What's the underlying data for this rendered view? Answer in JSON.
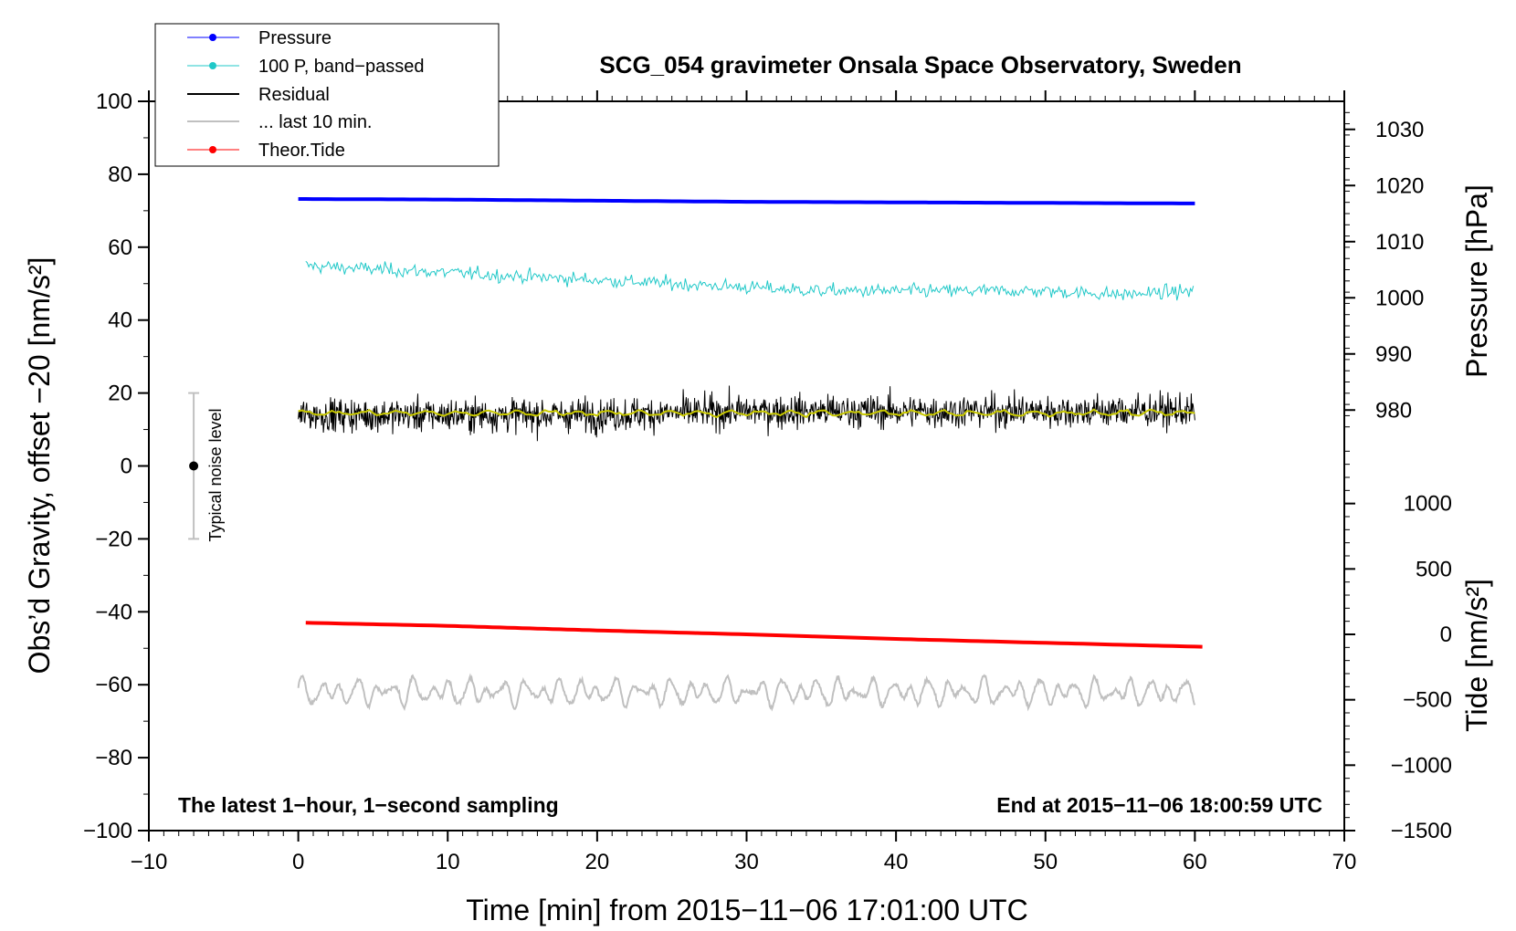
{
  "chart_data": {
    "type": "line",
    "title": "SCG_054 gravimeter Onsala Space Observatory, Sweden",
    "xlabel": "Time [min] from 2015−11−06 17:01:00 UTC",
    "ylabel_left": "Obs’d Gravity, offset −20 [nm/s²]",
    "ylabel_right_pressure": "Pressure [hPa]",
    "ylabel_right_tide": "Tide [nm/s²]",
    "xlim": [
      -10,
      70
    ],
    "ylim_left": [
      -100,
      100
    ],
    "ylim_pressure": [
      975,
      1035
    ],
    "ylim_tide": [
      -1500,
      1500
    ],
    "grid": false,
    "legend_position": "top-left",
    "x_ticks": [
      {
        "value": -10,
        "label": "−10"
      },
      {
        "value": 0,
        "label": "0"
      },
      {
        "value": 10,
        "label": "10"
      },
      {
        "value": 20,
        "label": "20"
      },
      {
        "value": 30,
        "label": "30"
      },
      {
        "value": 40,
        "label": "40"
      },
      {
        "value": 50,
        "label": "50"
      },
      {
        "value": 60,
        "label": "60"
      },
      {
        "value": 70,
        "label": "70"
      }
    ],
    "y_left_ticks": [
      {
        "value": 100,
        "label": "100"
      },
      {
        "value": 80,
        "label": "80"
      },
      {
        "value": 60,
        "label": "60"
      },
      {
        "value": 40,
        "label": "40"
      },
      {
        "value": 20,
        "label": "20"
      },
      {
        "value": 0,
        "label": "0"
      },
      {
        "value": -20,
        "label": "−20"
      },
      {
        "value": -40,
        "label": "−40"
      },
      {
        "value": -60,
        "label": "−60"
      },
      {
        "value": -80,
        "label": "−80"
      },
      {
        "value": -100,
        "label": "−100"
      }
    ],
    "y_pressure_ticks": [
      {
        "value": 1030,
        "label": "1030"
      },
      {
        "value": 1020,
        "label": "1020"
      },
      {
        "value": 1010,
        "label": "1010"
      },
      {
        "value": 1000,
        "label": "1000"
      },
      {
        "value": 990,
        "label": "990"
      },
      {
        "value": 980,
        "label": "980"
      }
    ],
    "y_tide_ticks": [
      {
        "value": 1000,
        "label": "1000"
      },
      {
        "value": 500,
        "label": "500"
      },
      {
        "value": 0,
        "label": "0"
      },
      {
        "value": -500,
        "label": "−500"
      },
      {
        "value": -1000,
        "label": "−1000"
      },
      {
        "value": -1500,
        "label": "−1500"
      }
    ],
    "series": [
      {
        "name": "Pressure",
        "axis": "pressure",
        "color": "#0000ff",
        "x": [
          0,
          10,
          20,
          30,
          40,
          50,
          60
        ],
        "y": [
          1017.6,
          1017.5,
          1017.3,
          1017.1,
          1017.0,
          1016.9,
          1016.8
        ]
      },
      {
        "name": "100 P, band−passed",
        "axis": "left",
        "color": "#20c8c8",
        "x": [
          0,
          5,
          10,
          15,
          20,
          25,
          30,
          35,
          40,
          45,
          50,
          55,
          60
        ],
        "y": [
          55,
          54,
          53,
          52,
          51,
          50,
          49,
          48,
          48,
          48,
          48,
          47,
          48
        ]
      },
      {
        "name": "Residual",
        "axis": "left",
        "color": "#000000",
        "x": [
          0,
          10,
          20,
          30,
          40,
          50,
          60
        ],
        "y": [
          14,
          14,
          14,
          15,
          15,
          15,
          15
        ]
      },
      {
        "name": "... last 10 min.",
        "axis": "left",
        "color": "#c0c0c0",
        "x": [
          0,
          10,
          20,
          30,
          40,
          50,
          60
        ],
        "y": [
          -62,
          -62,
          -62,
          -62,
          -62,
          -62,
          -62
        ]
      },
      {
        "name": "Theor.Tide",
        "axis": "tide",
        "color": "#ff0000",
        "x": [
          0,
          10,
          20,
          30,
          40,
          50,
          60.5
        ],
        "y": [
          90,
          65,
          30,
          0,
          -35,
          -65,
          -95
        ]
      }
    ],
    "smoothed_residual": {
      "color": "#c8c800",
      "y": 14.5
    },
    "noise_bar": {
      "label": "Typical noise level",
      "x": -7,
      "center": 0,
      "low": -20,
      "high": 20
    },
    "annotations": {
      "bottom_left": "The latest 1−hour, 1−second sampling",
      "bottom_right": "End at 2015−11−06 18:00:59 UTC"
    }
  }
}
